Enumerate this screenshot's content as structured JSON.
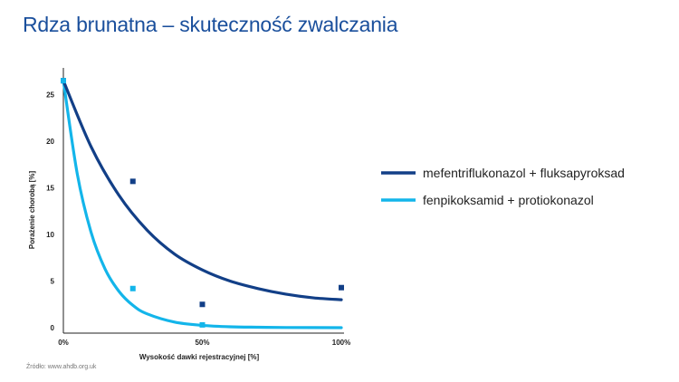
{
  "title": "Rdza brunatna – skuteczność zwalczania",
  "source": "Źródło: www.ahdb.org.uk",
  "chart_data": {
    "type": "scatter",
    "xlabel": "Wysokość dawki rejestracyjnej [%]",
    "ylabel": "Porażenie chorobą [%]",
    "xlim": [
      0,
      100
    ],
    "ylim": [
      0,
      27
    ],
    "xticks": [
      0,
      50,
      100
    ],
    "xtick_labels": [
      "0%",
      "50%",
      "100%"
    ],
    "yticks": [
      0,
      5,
      10,
      15,
      20,
      25
    ],
    "ytick_labels": [
      "0",
      "5",
      "10",
      "15",
      "20",
      "25"
    ],
    "legend_position": "right",
    "grid": false,
    "series": [
      {
        "name": "mefentriflukonazol + fluksapyroksad",
        "color": "#123f87",
        "points": [
          [
            0,
            26.5
          ],
          [
            25,
            15.7
          ],
          [
            50,
            2.5
          ],
          [
            100,
            4.3
          ]
        ],
        "fit_curve": [
          [
            0,
            26.5
          ],
          [
            10,
            19.4
          ],
          [
            20,
            14.2
          ],
          [
            30,
            10.5
          ],
          [
            40,
            7.9
          ],
          [
            50,
            6.2
          ],
          [
            60,
            5.0
          ],
          [
            70,
            4.2
          ],
          [
            80,
            3.6
          ],
          [
            90,
            3.2
          ],
          [
            100,
            3.0
          ]
        ]
      },
      {
        "name": "fenpikoksamid + protiokonazol",
        "color": "#13b5ea",
        "points": [
          [
            0,
            26.5
          ],
          [
            25,
            4.2
          ],
          [
            50,
            0.3
          ]
        ],
        "fit_curve": [
          [
            0,
            26.5
          ],
          [
            5,
            16.5
          ],
          [
            10,
            10.2
          ],
          [
            15,
            6.3
          ],
          [
            20,
            3.9
          ],
          [
            25,
            2.4
          ],
          [
            30,
            1.5
          ],
          [
            40,
            0.6
          ],
          [
            50,
            0.25
          ],
          [
            60,
            0.1
          ],
          [
            70,
            0.05
          ],
          [
            80,
            0.02
          ],
          [
            100,
            0
          ]
        ]
      }
    ]
  }
}
